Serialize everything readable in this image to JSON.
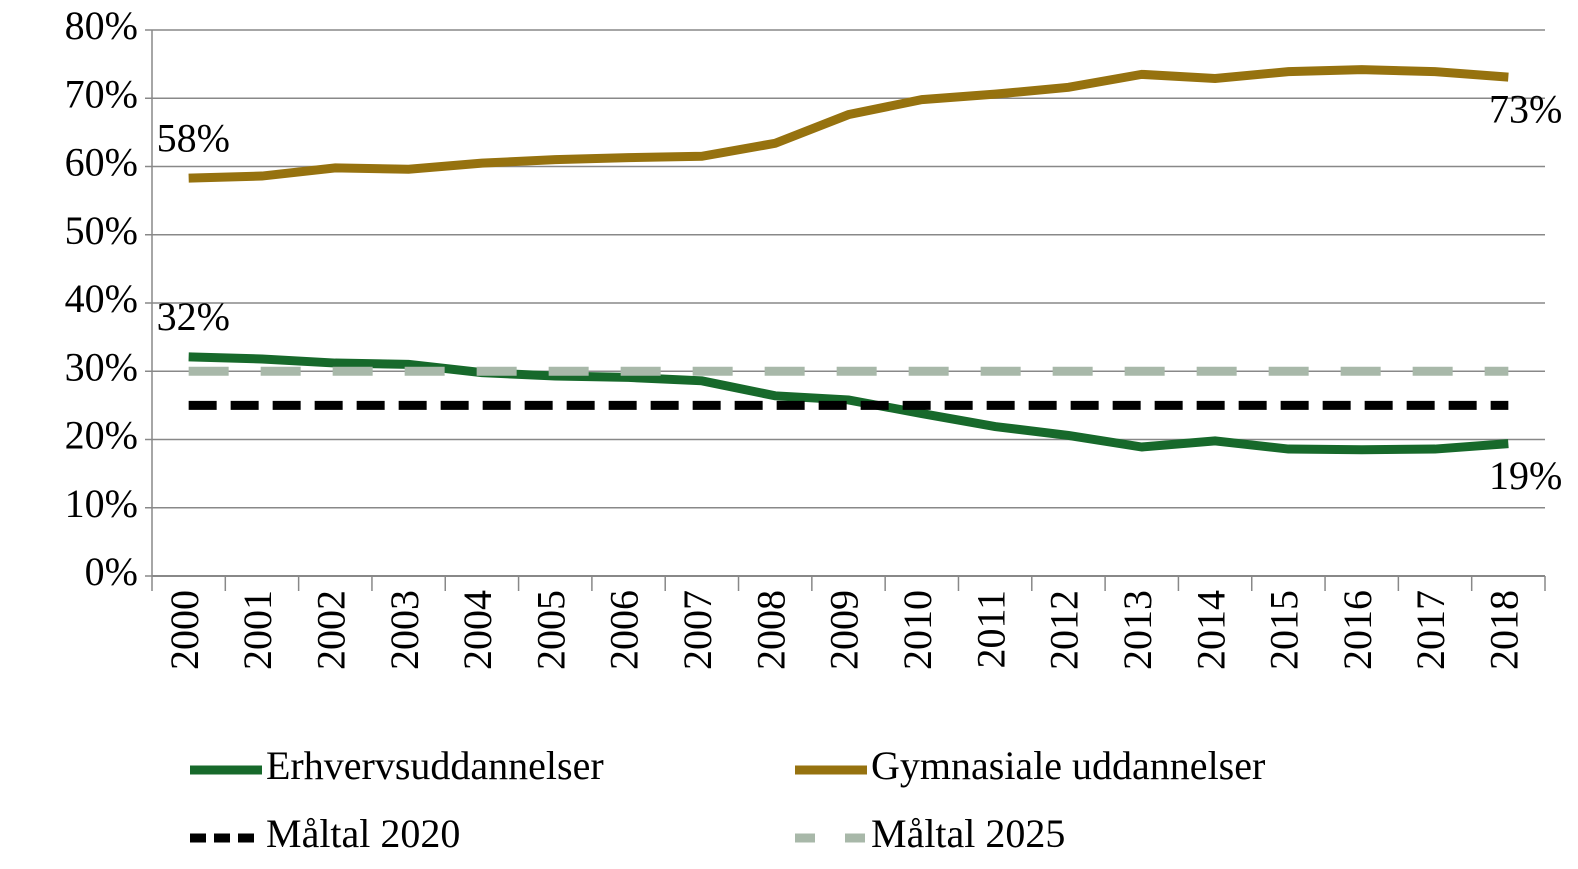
{
  "chart_data": {
    "type": "line",
    "categories": [
      "2000",
      "2001",
      "2002",
      "2003",
      "2004",
      "2005",
      "2006",
      "2007",
      "2008",
      "2009",
      "2010",
      "2011",
      "2012",
      "2013",
      "2014",
      "2015",
      "2016",
      "2017",
      "2018"
    ],
    "series": [
      {
        "name": "Erhvervsuddannelser",
        "color": "#17692b",
        "dash": "solid",
        "values": [
          32.1,
          31.8,
          31.2,
          31.0,
          29.8,
          29.3,
          29.1,
          28.6,
          26.4,
          25.8,
          23.8,
          21.9,
          20.6,
          18.9,
          19.8,
          18.6,
          18.5,
          18.6,
          19.4
        ],
        "value_labels": [
          "32%",
          null,
          null,
          null,
          null,
          null,
          null,
          null,
          null,
          null,
          null,
          null,
          null,
          null,
          null,
          null,
          null,
          null,
          "19%"
        ]
      },
      {
        "name": "Gymnasiale uddannelser",
        "color": "#96720f",
        "dash": "solid",
        "values": [
          58.3,
          58.6,
          59.8,
          59.6,
          60.5,
          61.0,
          61.3,
          61.5,
          63.4,
          67.6,
          69.8,
          70.6,
          71.6,
          73.5,
          72.9,
          73.9,
          74.2,
          73.9,
          73.1
        ],
        "value_labels": [
          "58%",
          null,
          null,
          null,
          null,
          null,
          null,
          null,
          null,
          null,
          null,
          null,
          null,
          null,
          null,
          null,
          null,
          null,
          "73%"
        ]
      },
      {
        "name": "Måltal 2020",
        "color": "#000000",
        "dash": "dashed",
        "values": [
          25,
          25,
          25,
          25,
          25,
          25,
          25,
          25,
          25,
          25,
          25,
          25,
          25,
          25,
          25,
          25,
          25,
          25,
          25
        ]
      },
      {
        "name": "Måltal 2025",
        "color": "#a8b8a9",
        "dash": "longdash",
        "values": [
          30,
          30,
          30,
          30,
          30,
          30,
          30,
          30,
          30,
          30,
          30,
          30,
          30,
          30,
          30,
          30,
          30,
          30,
          30
        ]
      }
    ],
    "ylim": [
      0,
      80
    ],
    "yticks": [
      {
        "value": 0,
        "label": "0%"
      },
      {
        "value": 10,
        "label": "10%"
      },
      {
        "value": 20,
        "label": "20%"
      },
      {
        "value": 30,
        "label": "30%"
      },
      {
        "value": 40,
        "label": "40%"
      },
      {
        "value": 50,
        "label": "50%"
      },
      {
        "value": 60,
        "label": "60%"
      },
      {
        "value": 70,
        "label": "70%"
      },
      {
        "value": 80,
        "label": "80%"
      }
    ],
    "grid": true
  }
}
